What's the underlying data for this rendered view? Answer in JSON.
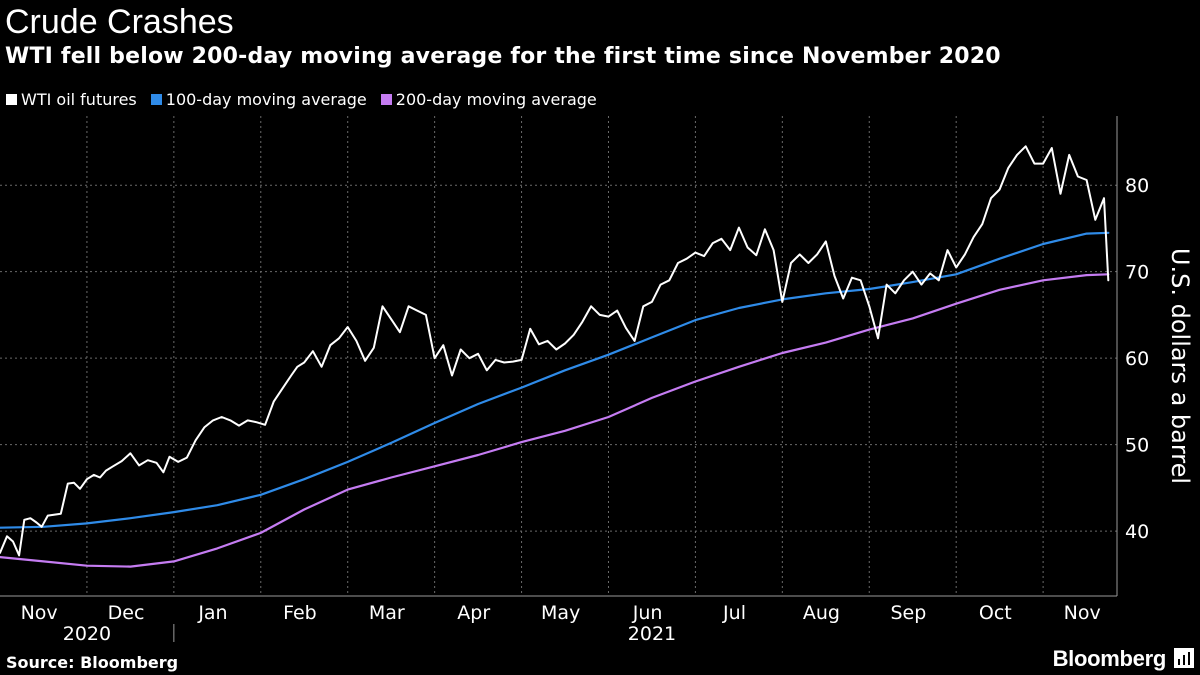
{
  "header": {
    "title": "Crude Crashes",
    "subtitle": "WTI fell below 200-day moving average for the first time since November 2020"
  },
  "legend": [
    {
      "label": "WTI oil futures",
      "color": "#ffffff"
    },
    {
      "label": "100-day moving average",
      "color": "#2f8be8"
    },
    {
      "label": "200-day moving average",
      "color": "#c57cf2"
    }
  ],
  "footer": {
    "source": "Source: Bloomberg",
    "brand": "Bloomberg"
  },
  "chart_data": {
    "type": "line",
    "title": "Crude Crashes",
    "subtitle": "WTI fell below 200-day moving average for the first time since November 2020",
    "xlabel": "",
    "ylabel": "U.S. dollars a barrel",
    "ylim": [
      32.5,
      88
    ],
    "yticks": [
      40,
      50,
      60,
      70,
      80
    ],
    "xlim": [
      0,
      12.85
    ],
    "month_labels": [
      "Nov",
      "Dec",
      "Jan",
      "Feb",
      "Mar",
      "Apr",
      "May",
      "Jun",
      "Jul",
      "Aug",
      "Sep",
      "Oct",
      "Nov"
    ],
    "year_labels": [
      {
        "label": "2020",
        "center": 1.0
      },
      {
        "label": "2021",
        "center": 7.5
      }
    ],
    "grid": true,
    "legend_position": "top-left",
    "series": [
      {
        "name": "WTI oil futures",
        "color": "#ffffff",
        "x": [
          0,
          0.08,
          0.15,
          0.22,
          0.28,
          0.35,
          0.42,
          0.48,
          0.55,
          0.62,
          0.7,
          0.78,
          0.85,
          0.92,
          1.0,
          1.08,
          1.15,
          1.22,
          1.3,
          1.4,
          1.5,
          1.6,
          1.7,
          1.8,
          1.88,
          1.95,
          2.05,
          2.15,
          2.25,
          2.35,
          2.45,
          2.55,
          2.65,
          2.75,
          2.85,
          2.95,
          3.05,
          3.15,
          3.25,
          3.35,
          3.42,
          3.5,
          3.6,
          3.7,
          3.8,
          3.9,
          4.0,
          4.1,
          4.2,
          4.3,
          4.4,
          4.5,
          4.6,
          4.7,
          4.8,
          4.9,
          5.0,
          5.1,
          5.2,
          5.3,
          5.4,
          5.5,
          5.6,
          5.7,
          5.8,
          5.9,
          6.0,
          6.1,
          6.2,
          6.3,
          6.4,
          6.5,
          6.6,
          6.7,
          6.8,
          6.9,
          7.0,
          7.1,
          7.2,
          7.3,
          7.4,
          7.5,
          7.6,
          7.7,
          7.8,
          7.9,
          8.0,
          8.1,
          8.2,
          8.3,
          8.4,
          8.5,
          8.6,
          8.7,
          8.8,
          8.9,
          9.0,
          9.1,
          9.2,
          9.3,
          9.4,
          9.5,
          9.6,
          9.7,
          9.8,
          9.9,
          10.0,
          10.1,
          10.2,
          10.3,
          10.4,
          10.5,
          10.6,
          10.7,
          10.8,
          10.9,
          11.0,
          11.1,
          11.2,
          11.3,
          11.4,
          11.5,
          11.6,
          11.7,
          11.8,
          11.9,
          12.0,
          12.1,
          12.2,
          12.3,
          12.4,
          12.5,
          12.6,
          12.7,
          12.75
        ],
        "values": [
          37.5,
          39.4,
          38.8,
          37.2,
          41.3,
          41.5,
          41.0,
          40.5,
          41.8,
          41.9,
          42.0,
          45.5,
          45.6,
          44.9,
          46.0,
          46.5,
          46.2,
          47.0,
          47.5,
          48.1,
          49.0,
          47.6,
          48.2,
          47.9,
          46.8,
          48.6,
          48.0,
          48.5,
          50.5,
          52.0,
          52.8,
          53.2,
          52.8,
          52.2,
          52.8,
          52.6,
          52.3,
          55.0,
          56.5,
          58.0,
          59.0,
          59.5,
          60.8,
          59.0,
          61.5,
          62.3,
          63.6,
          62.0,
          59.7,
          61.2,
          66.0,
          64.5,
          63.0,
          66.0,
          65.5,
          65.0,
          60.0,
          61.5,
          58.0,
          61.0,
          60.0,
          60.5,
          58.6,
          59.8,
          59.5,
          59.6,
          59.8,
          63.4,
          61.6,
          62.0,
          61.0,
          61.7,
          62.7,
          64.2,
          66.0,
          65.0,
          64.8,
          65.5,
          63.5,
          62.0,
          66.0,
          66.5,
          68.5,
          69.0,
          71.0,
          71.5,
          72.2,
          71.8,
          73.3,
          73.8,
          72.5,
          75.1,
          72.8,
          71.9,
          74.9,
          72.5,
          66.5,
          71.0,
          72.0,
          71.0,
          72.0,
          73.5,
          69.5,
          66.9,
          69.3,
          69.0,
          66.0,
          62.3,
          68.5,
          67.5,
          69.0,
          70.0,
          68.5,
          69.8,
          69.0,
          72.5,
          70.5,
          72.0,
          74.0,
          75.5,
          78.5,
          79.5,
          82.0,
          83.5,
          84.5,
          82.5,
          82.5,
          84.3,
          79.0,
          83.5,
          81.0,
          80.6,
          76.0,
          78.5,
          69.0
        ]
      },
      {
        "name": "100-day moving average",
        "color": "#2f8be8",
        "x": [
          0,
          0.5,
          1.0,
          1.5,
          2.0,
          2.5,
          3.0,
          3.5,
          4.0,
          4.5,
          5.0,
          5.5,
          6.0,
          6.5,
          7.0,
          7.5,
          8.0,
          8.5,
          9.0,
          9.5,
          10.0,
          10.5,
          11.0,
          11.5,
          12.0,
          12.5,
          12.75
        ],
        "values": [
          40.4,
          40.5,
          40.9,
          41.5,
          42.2,
          43.0,
          44.2,
          46.0,
          48.0,
          50.2,
          52.5,
          54.7,
          56.6,
          58.6,
          60.4,
          62.4,
          64.4,
          65.8,
          66.8,
          67.5,
          68.0,
          68.8,
          69.7,
          71.5,
          73.2,
          74.4,
          74.5
        ]
      },
      {
        "name": "200-day moving average",
        "color": "#c57cf2",
        "x": [
          0,
          0.5,
          1.0,
          1.5,
          2.0,
          2.5,
          3.0,
          3.5,
          4.0,
          4.5,
          5.0,
          5.5,
          6.0,
          6.5,
          7.0,
          7.5,
          8.0,
          8.5,
          9.0,
          9.5,
          10.0,
          10.5,
          11.0,
          11.5,
          12.0,
          12.5,
          12.75
        ],
        "values": [
          37.0,
          36.5,
          36.0,
          35.9,
          36.5,
          38.0,
          39.8,
          42.5,
          44.8,
          46.2,
          47.5,
          48.8,
          50.3,
          51.6,
          53.2,
          55.4,
          57.3,
          59.0,
          60.6,
          61.8,
          63.3,
          64.6,
          66.3,
          67.9,
          69.0,
          69.6,
          69.7
        ]
      }
    ]
  }
}
